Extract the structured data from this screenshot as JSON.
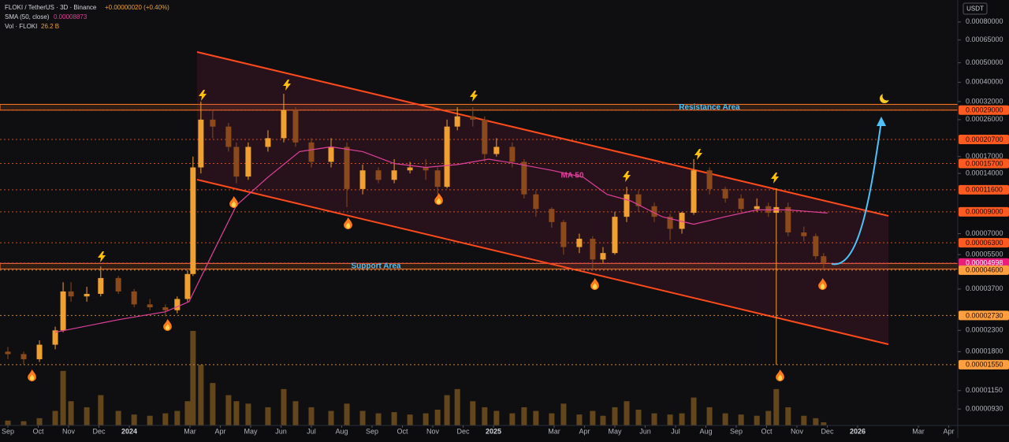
{
  "chart_data": {
    "type": "candlestick",
    "title": "FLOKI / TetherUS · 3D · Binance",
    "change": "+0.00000020 (+0.40%)",
    "sma_label": "SMA (50, close)",
    "sma_value": 8.873e-05,
    "volume_label": "Vol · FLOKI",
    "volume_value": "26.2 B",
    "currency": "USDT",
    "log_scale": true,
    "up_color": "#f0a030",
    "down_color": "#8c4a1c",
    "volume_color": "#c98a2a",
    "xlim": [
      -0.26,
      31.3
    ],
    "ylim": [
      7.7e-06,
      0.00103
    ],
    "xticks": [
      {
        "value": 0,
        "label": "Sep"
      },
      {
        "value": 1,
        "label": "Oct"
      },
      {
        "value": 2,
        "label": "Nov"
      },
      {
        "value": 3,
        "label": "Dec"
      },
      {
        "value": 4,
        "label": "2024"
      },
      {
        "value": 6,
        "label": "Mar"
      },
      {
        "value": 7,
        "label": "Apr"
      },
      {
        "value": 8,
        "label": "May"
      },
      {
        "value": 9,
        "label": "Jun"
      },
      {
        "value": 10,
        "label": "Jul"
      },
      {
        "value": 11,
        "label": "Aug"
      },
      {
        "value": 12,
        "label": "Sep"
      },
      {
        "value": 13,
        "label": "Oct"
      },
      {
        "value": 14,
        "label": "Nov"
      },
      {
        "value": 15,
        "label": "Dec"
      },
      {
        "value": 16,
        "label": "2025"
      },
      {
        "value": 18,
        "label": "Mar"
      },
      {
        "value": 19,
        "label": "Apr"
      },
      {
        "value": 20,
        "label": "May"
      },
      {
        "value": 21,
        "label": "Jun"
      },
      {
        "value": 22,
        "label": "Jul"
      },
      {
        "value": 23,
        "label": "Aug"
      },
      {
        "value": 24,
        "label": "Sep"
      },
      {
        "value": 25,
        "label": "Oct"
      },
      {
        "value": 26,
        "label": "Nov"
      },
      {
        "value": 27,
        "label": "Dec"
      },
      {
        "value": 28,
        "label": "2026"
      },
      {
        "value": 30,
        "label": "Mar"
      },
      {
        "value": 31,
        "label": "Apr"
      }
    ],
    "yticks": [
      {
        "value": 0.0008,
        "label": "0.00080000"
      },
      {
        "value": 0.00065,
        "label": "0.00065000"
      },
      {
        "value": 0.0005,
        "label": "0.00050000"
      },
      {
        "value": 0.0004,
        "label": "0.00040000"
      },
      {
        "value": 0.00032,
        "label": "0.00032000"
      },
      {
        "value": 0.00026,
        "label": "0.00026000"
      },
      {
        "value": 0.00017,
        "label": "0.00017000"
      },
      {
        "value": 0.00014,
        "label": "0.00014000"
      },
      {
        "value": 7e-05,
        "label": "0.00007000"
      },
      {
        "value": 5.5e-05,
        "label": "0.00005500"
      },
      {
        "value": 3.7e-05,
        "label": "0.00003700"
      },
      {
        "value": 2.3e-05,
        "label": "0.00002300"
      },
      {
        "value": 1.8e-05,
        "label": "0.00001800"
      },
      {
        "value": 1.15e-05,
        "label": "0.00001150"
      },
      {
        "value": 9.3e-06,
        "label": "0.00000930"
      }
    ],
    "levels": [
      {
        "value": 0.00029,
        "label": "0.00029000",
        "color": "#ff5a1f"
      },
      {
        "value": 0.000207,
        "label": "0.00020700",
        "color": "#ff5a1f"
      },
      {
        "value": 0.000157,
        "label": "0.00015700",
        "color": "#ff5a1f"
      },
      {
        "value": 0.000116,
        "label": "0.00011600",
        "color": "#ff5a1f"
      },
      {
        "value": 9e-05,
        "label": "0.00009000",
        "color": "#ff5a1f"
      },
      {
        "value": 6.3e-05,
        "label": "0.00006300",
        "color": "#ff5a1f"
      },
      {
        "value": 4.998e-05,
        "label": "0.00004998",
        "color": "#e91e7a"
      },
      {
        "value": 4.6e-05,
        "label": "0.00004600",
        "color": "#ffa040"
      },
      {
        "value": 2.73e-05,
        "label": "0.00002730",
        "color": "#ffa040"
      },
      {
        "value": 1.55e-05,
        "label": "0.00001550",
        "color": "#ffa040"
      }
    ],
    "zones": [
      {
        "label": "Resistance Area",
        "range": [
          0.00029,
          0.00031
        ]
      },
      {
        "label": "Support Area",
        "range": [
          4.66e-05,
          4.97e-05
        ]
      }
    ],
    "sma_annotation": "MA 50",
    "candles": {
      "x": [
        0,
        0.52,
        1.04,
        1.56,
        1.82,
        2.08,
        2.6,
        3.06,
        3.64,
        4.16,
        4.68,
        5.19,
        5.58,
        5.92,
        6.1,
        6.36,
        6.75,
        7.27,
        7.53,
        7.92,
        8.57,
        9.09,
        9.48,
        10,
        10.65,
        11.17,
        11.69,
        12.21,
        12.73,
        13.25,
        13.77,
        14.16,
        14.47,
        14.81,
        15.32,
        15.71,
        16.1,
        16.62,
        17.01,
        17.4,
        17.92,
        18.31,
        18.83,
        19.27,
        19.61,
        20,
        20.39,
        20.78,
        21.3,
        21.82,
        22.21,
        22.6,
        23.12,
        23.64,
        24.16,
        24.68,
        25.06,
        25.32,
        25.71,
        26.23,
        26.62,
        26.88
      ],
      "open": [
        1.8e-05,
        1.75e-05,
        1.65e-05,
        1.95e-05,
        2.3e-05,
        3.6e-05,
        3.4e-05,
        3.5e-05,
        4.2e-05,
        3.6e-05,
        3.1e-05,
        3e-05,
        2.9e-05,
        3.3e-05,
        4.4e-05,
        0.00015,
        0.00026,
        0.00024,
        0.00019,
        0.000135,
        0.00019,
        0.00021,
        0.00029,
        0.0002,
        0.00016,
        0.00019,
        0.000117,
        0.000145,
        0.00013,
        0.000145,
        0.00015,
        0.000145,
        0.00012,
        0.00024,
        0.00027,
        0.00026,
        0.000175,
        0.00019,
        0.00016,
        0.00011,
        9.3e-05,
        8e-05,
        6e-05,
        6.6e-05,
        5.2e-05,
        5.6e-05,
        8.5e-05,
        0.00011,
        9.6e-05,
        8.5e-05,
        7.4e-05,
        8.9e-05,
        0.000145,
        0.000117,
        0.000105,
        9.3e-05,
        9.6e-05,
        8.9e-05,
        9.5e-05,
        7.1e-05,
        6.8e-05,
        5.4e-05
      ],
      "high": [
        1.9e-05,
        1.8e-05,
        2.05e-05,
        2.4e-05,
        4e-05,
        4e-05,
        3.8e-05,
        4.8e-05,
        4.3e-05,
        3.7e-05,
        3.3e-05,
        3.1e-05,
        3.4e-05,
        4.6e-05,
        0.00017,
        0.00032,
        0.00029,
        0.00025,
        0.0002,
        0.0002,
        0.00023,
        0.00035,
        0.0003,
        0.00021,
        0.00021,
        0.0002,
        0.000155,
        0.00015,
        0.000165,
        0.00016,
        0.000165,
        0.00015,
        0.00026,
        0.0003,
        0.0003,
        0.00027,
        0.00021,
        0.0002,
        0.000165,
        0.000115,
        9.5e-05,
        8.2e-05,
        7e-05,
        6.8e-05,
        6e-05,
        9e-05,
        0.00012,
        0.000115,
        0.0001,
        8.8e-05,
        9e-05,
        0.000165,
        0.00015,
        0.00012,
        0.00011,
        0.000105,
        0.0001,
        0.000118,
        0.0001,
        7.6e-05,
        7e-05,
        5.6e-05
      ],
      "low": [
        1.65e-05,
        1.55e-05,
        1.6e-05,
        1.85e-05,
        2.25e-05,
        3.2e-05,
        3.2e-05,
        3.4e-05,
        3.5e-05,
        3e-05,
        2.9e-05,
        2.7e-05,
        2.8e-05,
        3.2e-05,
        4.3e-05,
        0.00014,
        0.00021,
        0.00018,
        0.000125,
        0.00013,
        0.00018,
        0.0002,
        0.00019,
        0.00015,
        0.00015,
        9.5e-05,
        0.00011,
        0.000125,
        0.000125,
        0.00014,
        0.00013,
        0.00011,
        0.000118,
        0.00023,
        0.00024,
        0.00016,
        0.00017,
        0.00015,
        0.000105,
        8.5e-05,
        7.5e-05,
        5.5e-05,
        5.6e-05,
        4.6e-05,
        5e-05,
        5.5e-05,
        8e-05,
        9e-05,
        8e-05,
        6.5e-05,
        7e-05,
        8.7e-05,
        0.00011,
        0.0001,
        9e-05,
        9e-05,
        8.5e-05,
        1.55e-05,
        6.8e-05,
        6.4e-05,
        5.2e-05,
        4.6e-05
      ],
      "close": [
        1.75e-05,
        1.65e-05,
        1.95e-05,
        2.3e-05,
        3.6e-05,
        3.4e-05,
        3.5e-05,
        4.2e-05,
        3.6e-05,
        3.1e-05,
        3e-05,
        2.9e-05,
        3.3e-05,
        4.4e-05,
        0.00015,
        0.00026,
        0.00024,
        0.00019,
        0.000135,
        0.00019,
        0.00021,
        0.00029,
        0.0002,
        0.00016,
        0.00019,
        0.000117,
        0.000145,
        0.00013,
        0.000145,
        0.00015,
        0.000145,
        0.00012,
        0.00024,
        0.00027,
        0.00026,
        0.000175,
        0.00019,
        0.00016,
        0.00011,
        9.3e-05,
        8e-05,
        6e-05,
        6.6e-05,
        5.2e-05,
        5.6e-05,
        8.5e-05,
        0.00011,
        9.6e-05,
        8.5e-05,
        7.4e-05,
        8.9e-05,
        0.000145,
        0.000117,
        0.000105,
        9.3e-05,
        9.6e-05,
        8.9e-05,
        9.5e-05,
        7.1e-05,
        6.8e-05,
        5.4e-05,
        4.998e-05
      ],
      "volume": [
        40,
        35,
        60,
        120,
        450,
        200,
        150,
        250,
        120,
        90,
        80,
        100,
        120,
        200,
        780,
        500,
        350,
        250,
        200,
        180,
        150,
        300,
        200,
        150,
        120,
        180,
        120,
        100,
        110,
        90,
        100,
        130,
        250,
        300,
        200,
        150,
        120,
        100,
        150,
        120,
        100,
        180,
        90,
        120,
        80,
        150,
        200,
        130,
        100,
        90,
        100,
        230,
        150,
        100,
        90,
        80,
        120,
        300,
        150,
        80,
        60,
        26.2
      ]
    },
    "sma": {
      "color": "#e0409a",
      "x": [
        1.56,
        3.64,
        5.19,
        5.97,
        6.75,
        7.53,
        8.57,
        9.61,
        10.65,
        11.69,
        12.73,
        13.77,
        14.81,
        15.84,
        16.62,
        17.92,
        18.96,
        19.74,
        20.52,
        21.56,
        22.6,
        23.64,
        24.68,
        25.71,
        27.01
      ],
      "values": [
        2.25e-05,
        2.6e-05,
        2.85e-05,
        3.2e-05,
        5.6e-05,
        9.7e-05,
        0.000134,
        0.00018,
        0.00019,
        0.00018,
        0.000157,
        0.00015,
        0.000155,
        0.000165,
        0.000158,
        0.000145,
        0.000134,
        0.00011,
        0.000102,
        8.5e-05,
        7.8e-05,
        8.5e-05,
        9.2e-05,
        9.2e-05,
        8.873e-05
      ]
    }
  }
}
